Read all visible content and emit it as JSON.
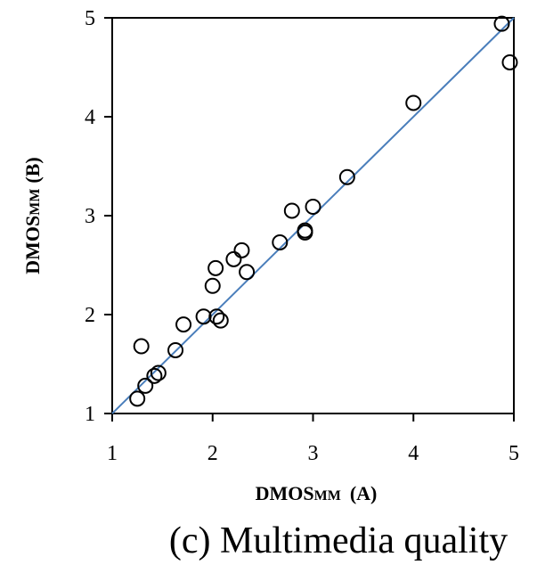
{
  "chart_data": {
    "type": "scatter",
    "caption": "(c) Multimedia quality",
    "xlabel": {
      "main": "DMOS",
      "sub": "MM",
      "suffix": "(A)"
    },
    "ylabel": {
      "main": "DMOS",
      "sub": "MM",
      "suffix": "(B)"
    },
    "xlim": [
      1,
      5
    ],
    "ylim": [
      1,
      5
    ],
    "xticks": [
      1,
      2,
      3,
      4,
      5
    ],
    "yticks": [
      1,
      2,
      3,
      4,
      5
    ],
    "reference_line": {
      "from": [
        1,
        1
      ],
      "to": [
        5,
        5
      ],
      "color": "#4a7ebb"
    },
    "marker": "open-circle",
    "series": [
      {
        "points": [
          [
            1.25,
            1.15
          ],
          [
            1.29,
            1.68
          ],
          [
            1.33,
            1.28
          ],
          [
            1.42,
            1.38
          ],
          [
            1.46,
            1.41
          ],
          [
            1.63,
            1.64
          ],
          [
            1.71,
            1.9
          ],
          [
            1.91,
            1.98
          ],
          [
            2.0,
            2.29
          ],
          [
            2.03,
            2.47
          ],
          [
            2.04,
            1.98
          ],
          [
            2.08,
            1.94
          ],
          [
            2.21,
            2.56
          ],
          [
            2.29,
            2.65
          ],
          [
            2.34,
            2.43
          ],
          [
            2.67,
            2.73
          ],
          [
            2.79,
            3.05
          ],
          [
            2.92,
            2.85
          ],
          [
            2.92,
            2.83
          ],
          [
            3.0,
            3.09
          ],
          [
            3.34,
            3.39
          ],
          [
            4.0,
            4.14
          ],
          [
            4.88,
            4.94
          ],
          [
            4.96,
            4.55
          ]
        ]
      }
    ]
  }
}
